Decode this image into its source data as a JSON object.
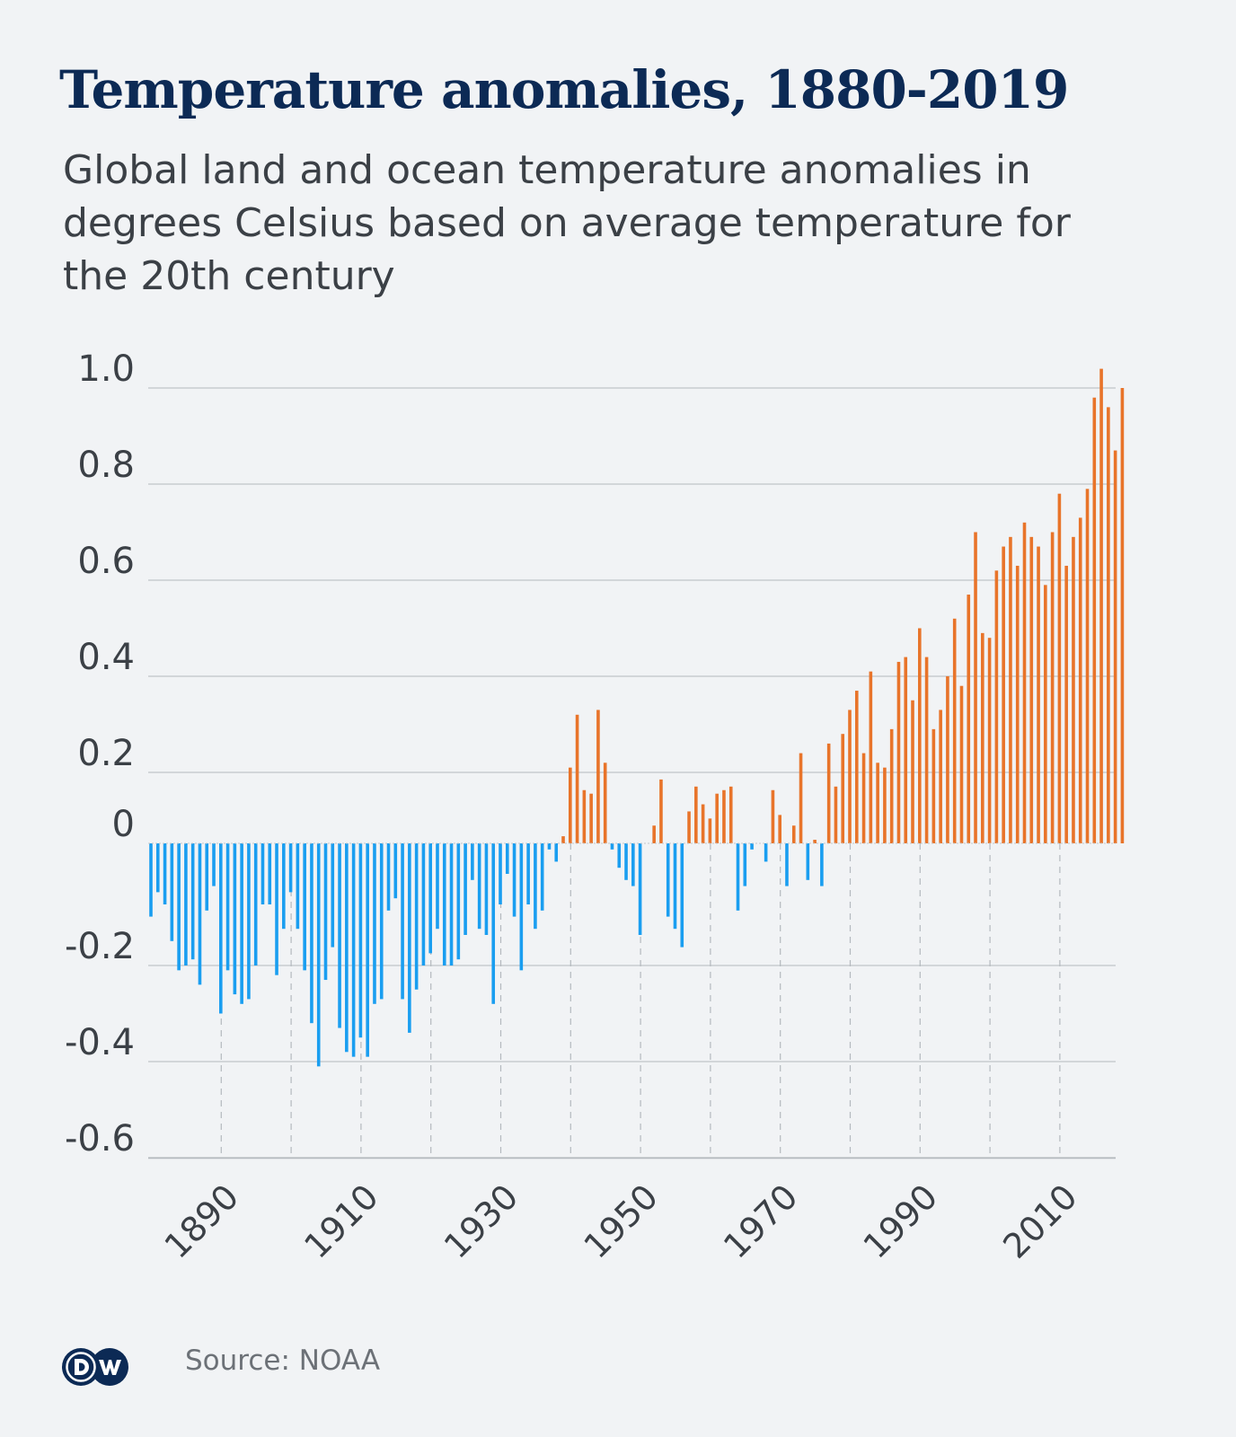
{
  "header": {
    "title": "Temperature anomalies, 1880-2019",
    "subtitle": "Global land and ocean temperature anomalies in degrees Celsius based on average temperature for the 20th century"
  },
  "footer": {
    "logo_text": "DW",
    "logo_icon": "dw-logo-icon",
    "source": "Source: NOAA"
  },
  "colors": {
    "positive": "#e8742a",
    "negative": "#1a9ef0",
    "title": "#0c2a55",
    "text": "#3b4046",
    "grid": "#c8ccd0",
    "background": "#f1f3f5"
  },
  "chart_data": {
    "type": "bar",
    "title": "Temperature anomalies, 1880-2019",
    "subtitle": "Global land and ocean temperature anomalies in degrees Celsius based on average temperature for the 20th century",
    "xlabel": "",
    "ylabel": "",
    "ylim": [
      -0.6,
      1.0
    ],
    "yticks": [
      1.0,
      0.8,
      0.6,
      0.4,
      0.2,
      0,
      -0.2,
      -0.4,
      -0.6
    ],
    "ytick_labels": [
      "1.0",
      "0.8",
      "0.6",
      "0.4",
      "0.2",
      "0",
      "-0.2",
      "-0.4",
      "-0.6"
    ],
    "xticks": [
      1890,
      1910,
      1930,
      1950,
      1970,
      1990,
      2010
    ],
    "xtick_labels": [
      "1890",
      "1910",
      "1930",
      "1950",
      "1970",
      "1990",
      "2010"
    ],
    "decade_gridlines": [
      1890,
      1900,
      1910,
      1920,
      1930,
      1940,
      1950,
      1960,
      1970,
      1980,
      1990,
      2000,
      2010
    ],
    "grid": true,
    "legend": "none",
    "x_start": 1880,
    "x_end": 2019,
    "values": [
      -0.12,
      -0.08,
      -0.1,
      -0.16,
      -0.21,
      -0.2,
      -0.19,
      -0.24,
      -0.11,
      -0.07,
      -0.3,
      -0.21,
      -0.26,
      -0.28,
      -0.27,
      -0.2,
      -0.1,
      -0.1,
      -0.22,
      -0.14,
      -0.08,
      -0.14,
      -0.21,
      -0.32,
      -0.41,
      -0.23,
      -0.17,
      -0.33,
      -0.38,
      -0.39,
      -0.35,
      -0.39,
      -0.28,
      -0.27,
      -0.11,
      -0.09,
      -0.27,
      -0.34,
      -0.25,
      -0.2,
      -0.18,
      -0.14,
      -0.2,
      -0.2,
      -0.19,
      -0.15,
      -0.06,
      -0.14,
      -0.15,
      -0.28,
      -0.1,
      -0.05,
      -0.12,
      -0.21,
      -0.1,
      -0.14,
      -0.11,
      -0.01,
      -0.03,
      0.02,
      0.21,
      0.32,
      0.15,
      0.14,
      0.33,
      0.22,
      -0.01,
      -0.04,
      -0.06,
      -0.07,
      -0.15,
      0.0,
      0.05,
      0.18,
      -0.12,
      -0.14,
      -0.17,
      0.09,
      0.16,
      0.11,
      0.07,
      0.14,
      0.15,
      0.16,
      -0.11,
      -0.07,
      -0.01,
      0.0,
      -0.03,
      0.15,
      0.08,
      -0.07,
      0.05,
      0.24,
      -0.06,
      0.01,
      -0.07,
      0.26,
      0.16,
      0.28,
      0.33,
      0.37,
      0.24,
      0.41,
      0.22,
      0.21,
      0.29,
      0.43,
      0.44,
      0.35,
      0.5,
      0.44,
      0.29,
      0.33,
      0.4,
      0.52,
      0.38,
      0.57,
      0.7,
      0.49,
      0.48,
      0.62,
      0.67,
      0.69,
      0.63,
      0.72,
      0.69,
      0.67,
      0.59,
      0.7,
      0.78,
      0.63,
      0.69,
      0.73,
      0.79,
      0.98,
      1.04,
      0.96,
      0.87,
      1.0
    ]
  }
}
